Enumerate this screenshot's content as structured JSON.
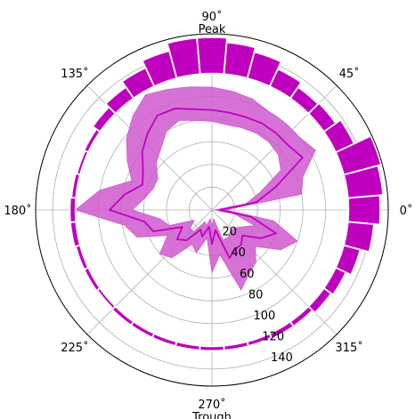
{
  "chart_data": {
    "type": "polar-bar-with-area",
    "angle_ticks": [
      "0˚",
      "45˚",
      "90˚",
      "135˚",
      "180˚",
      "225˚",
      "270˚",
      "315˚"
    ],
    "angle_tick_degrees": [
      0,
      45,
      90,
      135,
      180,
      225,
      270,
      315
    ],
    "angle_annotations": [
      {
        "text": "Peak",
        "angle": 90
      },
      {
        "text": "Trough",
        "angle": 270
      }
    ],
    "radial_ticks": [
      20,
      40,
      60,
      80,
      100,
      120,
      140
    ],
    "rlim": [
      0,
      155
    ],
    "radial_label_angle": 292.5,
    "grid": true,
    "bar_series": {
      "color": "#bf00bf",
      "base": 120,
      "bin_width_deg": 10,
      "bars": [
        {
          "angle": 0,
          "value": 148
        },
        {
          "angle": 10,
          "value": 151
        },
        {
          "angle": 20,
          "value": 154
        },
        {
          "angle": 30,
          "value": 138
        },
        {
          "angle": 40,
          "value": 133
        },
        {
          "angle": 50,
          "value": 132
        },
        {
          "angle": 60,
          "value": 137
        },
        {
          "angle": 70,
          "value": 144
        },
        {
          "angle": 80,
          "value": 148
        },
        {
          "angle": 90,
          "value": 152
        },
        {
          "angle": 100,
          "value": 152
        },
        {
          "angle": 110,
          "value": 145
        },
        {
          "angle": 120,
          "value": 138
        },
        {
          "angle": 130,
          "value": 132
        },
        {
          "angle": 140,
          "value": 128
        },
        {
          "angle": 150,
          "value": 124
        },
        {
          "angle": 160,
          "value": 123
        },
        {
          "angle": 170,
          "value": 124
        },
        {
          "angle": 180,
          "value": 125
        },
        {
          "angle": 190,
          "value": 125
        },
        {
          "angle": 200,
          "value": 124
        },
        {
          "angle": 210,
          "value": 124
        },
        {
          "angle": 220,
          "value": 123
        },
        {
          "angle": 230,
          "value": 124
        },
        {
          "angle": 240,
          "value": 124
        },
        {
          "angle": 250,
          "value": 124
        },
        {
          "angle": 260,
          "value": 124
        },
        {
          "angle": 270,
          "value": 124
        },
        {
          "angle": 280,
          "value": 124
        },
        {
          "angle": 290,
          "value": 124
        },
        {
          "angle": 300,
          "value": 125
        },
        {
          "angle": 310,
          "value": 125
        },
        {
          "angle": 320,
          "value": 128
        },
        {
          "angle": 330,
          "value": 130
        },
        {
          "angle": 340,
          "value": 135
        },
        {
          "angle": 350,
          "value": 143
        }
      ]
    },
    "area_series": {
      "line_color": "#bf00bf",
      "fill_color": "#cf59cf",
      "points": [
        {
          "angle": 0,
          "mean": 7,
          "low": 2,
          "high": 12
        },
        {
          "angle": 10,
          "mean": 40,
          "low": 30,
          "high": 80
        },
        {
          "angle": 20,
          "mean": 60,
          "low": 45,
          "high": 85
        },
        {
          "angle": 30,
          "mean": 92,
          "low": 70,
          "high": 105
        },
        {
          "angle": 40,
          "mean": 88,
          "low": 76,
          "high": 100
        },
        {
          "angle": 50,
          "mean": 88,
          "low": 78,
          "high": 100
        },
        {
          "angle": 60,
          "mean": 88,
          "low": 78,
          "high": 100
        },
        {
          "angle": 70,
          "mean": 87,
          "low": 77,
          "high": 104
        },
        {
          "angle": 80,
          "mean": 87,
          "low": 76,
          "high": 106
        },
        {
          "angle": 90,
          "mean": 88,
          "low": 78,
          "high": 108
        },
        {
          "angle": 100,
          "mean": 90,
          "low": 80,
          "high": 110
        },
        {
          "angle": 110,
          "mean": 95,
          "low": 84,
          "high": 113
        },
        {
          "angle": 120,
          "mean": 96,
          "low": 80,
          "high": 117
        },
        {
          "angle": 130,
          "mean": 88,
          "low": 70,
          "high": 108
        },
        {
          "angle": 140,
          "mean": 80,
          "low": 64,
          "high": 98
        },
        {
          "angle": 150,
          "mean": 70,
          "low": 55,
          "high": 86
        },
        {
          "angle": 160,
          "mean": 65,
          "low": 55,
          "high": 75
        },
        {
          "angle": 170,
          "mean": 78,
          "low": 60,
          "high": 100
        },
        {
          "angle": 180,
          "mean": 90,
          "low": 70,
          "high": 120
        },
        {
          "angle": 190,
          "mean": 60,
          "low": 46,
          "high": 78
        },
        {
          "angle": 200,
          "mean": 55,
          "low": 40,
          "high": 70
        },
        {
          "angle": 210,
          "mean": 30,
          "low": 18,
          "high": 45
        },
        {
          "angle": 220,
          "mean": 40,
          "low": 25,
          "high": 60
        },
        {
          "angle": 230,
          "mean": 35,
          "low": 25,
          "high": 55
        },
        {
          "angle": 240,
          "mean": 20,
          "low": 12,
          "high": 35
        },
        {
          "angle": 250,
          "mean": 25,
          "low": 15,
          "high": 40
        },
        {
          "angle": 260,
          "mean": 15,
          "low": 8,
          "high": 25
        },
        {
          "angle": 270,
          "mean": 30,
          "low": 15,
          "high": 55
        },
        {
          "angle": 280,
          "mean": 18,
          "low": 8,
          "high": 40
        },
        {
          "angle": 290,
          "mean": 45,
          "low": 28,
          "high": 75
        },
        {
          "angle": 300,
          "mean": 40,
          "low": 28,
          "high": 65
        },
        {
          "angle": 310,
          "mean": 40,
          "low": 25,
          "high": 60
        },
        {
          "angle": 320,
          "mean": 35,
          "low": 25,
          "high": 50
        },
        {
          "angle": 330,
          "mean": 50,
          "low": 30,
          "high": 70
        },
        {
          "angle": 340,
          "mean": 60,
          "low": 40,
          "high": 80
        },
        {
          "angle": 350,
          "mean": 35,
          "low": 20,
          "high": 55
        }
      ]
    }
  }
}
